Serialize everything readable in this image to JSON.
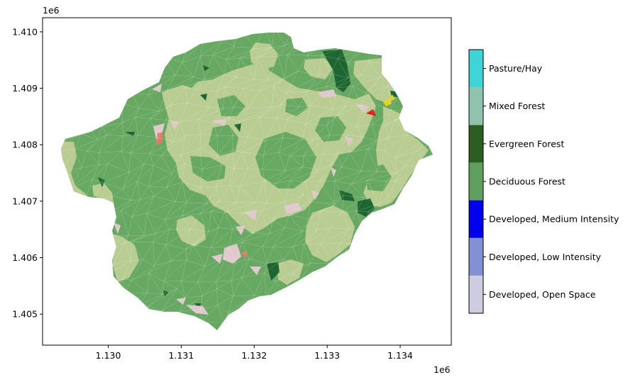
{
  "chart_data": {
    "type": "map",
    "xlim": [
      1129100,
      1134700
    ],
    "ylim": [
      1404450,
      1410250
    ],
    "x_ticks": [
      1130000,
      1131000,
      1132000,
      1133000,
      1134000
    ],
    "x_tick_labels": [
      "1.130",
      "1.131",
      "1.132",
      "1.133",
      "1.134"
    ],
    "y_ticks": [
      1405000,
      1406000,
      1407000,
      1408000,
      1409000,
      1410000
    ],
    "y_tick_labels": [
      "1.405",
      "1.406",
      "1.407",
      "1.408",
      "1.409",
      "1.410"
    ],
    "x_offset_label": "1e6",
    "y_offset_label": "1e6",
    "legend_categories": [
      {
        "label": "Developed, Open Space",
        "color": "#cdcce0"
      },
      {
        "label": "Developed, Low Intensity",
        "color": "#8390d2"
      },
      {
        "label": "Developed, Medium Intensity",
        "color": "#0000ee"
      },
      {
        "label": "Deciduous Forest",
        "color": "#5fa05f"
      },
      {
        "label": "Evergreen Forest",
        "color": "#2b5e20"
      },
      {
        "label": "Mixed Forest",
        "color": "#8fc3ad"
      },
      {
        "label": "Pasture/Hay",
        "color": "#3dd5d8"
      }
    ],
    "map_colors": {
      "deciduous": "#67a862",
      "grassland": "#b9cc92",
      "evergreen": "#1d6632",
      "open_space": "#e0c9cc",
      "highlight_red": "#e41a1c",
      "highlight_yellow": "#e6d31c"
    }
  }
}
